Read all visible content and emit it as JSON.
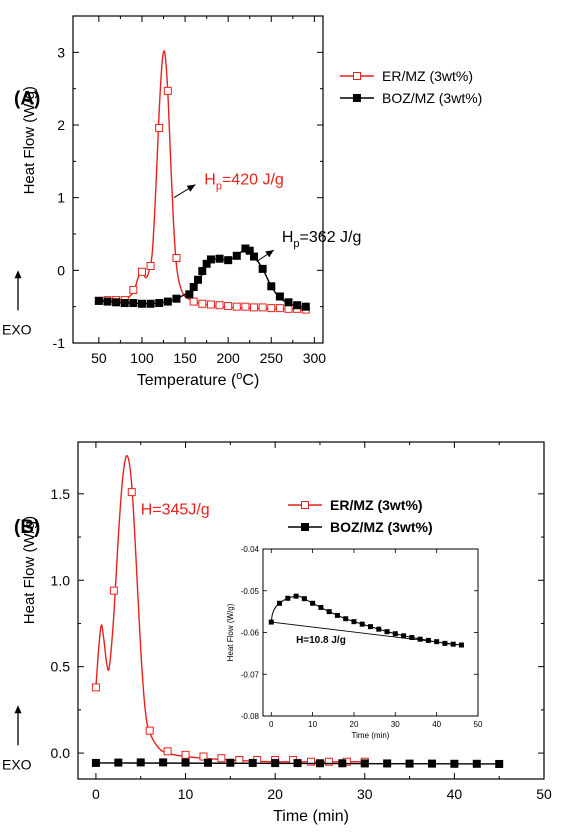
{
  "chart_data": [
    {
      "type": "line",
      "panel_label": "(A)",
      "xlabel": "Temperature (°C)",
      "xlabel_pre": "Temperature (",
      "xlabel_sup": "o",
      "xlabel_post": "C)",
      "ylabel": "Heat Flow (W/g)",
      "exo_label": "EXO",
      "xlim": [
        20,
        310
      ],
      "ylim": [
        -1,
        3.5
      ],
      "xticks": [
        50,
        100,
        150,
        200,
        250,
        300
      ],
      "yticks": [
        -1,
        0,
        1,
        2,
        3
      ],
      "legend_position": "top-right",
      "series": [
        {
          "name": "ER/MZ (3wt%)",
          "color": "#e8211d",
          "marker": "open-square",
          "curve": [
            [
              50,
              -0.42
            ],
            [
              60,
              -0.41
            ],
            [
              70,
              -0.41
            ],
            [
              80,
              -0.4
            ],
            [
              90,
              -0.3
            ],
            [
              95,
              -0.12
            ],
            [
              100,
              0.02
            ],
            [
              104,
              -0.1
            ],
            [
              108,
              -0.02
            ],
            [
              112,
              0.25
            ],
            [
              116,
              1.1
            ],
            [
              120,
              2.2
            ],
            [
              123,
              2.8
            ],
            [
              125,
              3.0
            ],
            [
              127,
              2.95
            ],
            [
              130,
              2.45
            ],
            [
              133,
              1.6
            ],
            [
              136,
              0.8
            ],
            [
              139,
              0.2
            ],
            [
              142,
              -0.1
            ],
            [
              146,
              -0.28
            ],
            [
              150,
              -0.36
            ],
            [
              155,
              -0.4
            ],
            [
              160,
              -0.43
            ],
            [
              170,
              -0.46
            ],
            [
              180,
              -0.48
            ],
            [
              190,
              -0.5
            ],
            [
              200,
              -0.51
            ],
            [
              220,
              -0.52
            ],
            [
              250,
              -0.53
            ],
            [
              290,
              -0.54
            ]
          ],
          "markers": [
            [
              50,
              -0.42
            ],
            [
              60,
              -0.41
            ],
            [
              70,
              -0.41
            ],
            [
              80,
              -0.41
            ],
            [
              90,
              -0.27
            ],
            [
              100,
              -0.02
            ],
            [
              110,
              0.06
            ],
            [
              120,
              1.96
            ],
            [
              130,
              2.47
            ],
            [
              140,
              0.17
            ],
            [
              160,
              -0.43
            ],
            [
              170,
              -0.46
            ],
            [
              180,
              -0.47
            ],
            [
              190,
              -0.48
            ],
            [
              200,
              -0.49
            ],
            [
              210,
              -0.5
            ],
            [
              220,
              -0.5
            ],
            [
              230,
              -0.51
            ],
            [
              240,
              -0.51
            ],
            [
              250,
              -0.52
            ],
            [
              260,
              -0.52
            ],
            [
              270,
              -0.53
            ],
            [
              280,
              -0.53
            ],
            [
              290,
              -0.54
            ]
          ]
        },
        {
          "name": "BOZ/MZ (3wt%)",
          "color": "#000000",
          "marker": "filled-square",
          "curve": [
            [
              50,
              -0.42
            ],
            [
              70,
              -0.44
            ],
            [
              90,
              -0.45
            ],
            [
              110,
              -0.46
            ],
            [
              130,
              -0.43
            ],
            [
              140,
              -0.39
            ],
            [
              150,
              -0.33
            ],
            [
              160,
              -0.25
            ],
            [
              165,
              -0.16
            ],
            [
              170,
              -0.05
            ],
            [
              175,
              0.08
            ],
            [
              180,
              0.15
            ],
            [
              190,
              0.16
            ],
            [
              200,
              0.14
            ],
            [
              210,
              0.2
            ],
            [
              220,
              0.3
            ],
            [
              225,
              0.28
            ],
            [
              230,
              0.2
            ],
            [
              240,
              0.02
            ],
            [
              250,
              -0.22
            ],
            [
              260,
              -0.38
            ],
            [
              270,
              -0.45
            ],
            [
              280,
              -0.49
            ],
            [
              290,
              -0.51
            ]
          ],
          "markers": [
            [
              50,
              -0.42
            ],
            [
              60,
              -0.43
            ],
            [
              70,
              -0.44
            ],
            [
              80,
              -0.45
            ],
            [
              90,
              -0.45
            ],
            [
              100,
              -0.46
            ],
            [
              110,
              -0.46
            ],
            [
              120,
              -0.45
            ],
            [
              130,
              -0.43
            ],
            [
              140,
              -0.39
            ],
            [
              155,
              -0.33
            ],
            [
              160,
              -0.23
            ],
            [
              165,
              -0.13
            ],
            [
              170,
              -0.01
            ],
            [
              175,
              0.09
            ],
            [
              180,
              0.15
            ],
            [
              190,
              0.16
            ],
            [
              200,
              0.14
            ],
            [
              210,
              0.2
            ],
            [
              220,
              0.3
            ],
            [
              225,
              0.27
            ],
            [
              230,
              0.19
            ],
            [
              240,
              0.02
            ],
            [
              250,
              -0.22
            ],
            [
              260,
              -0.36
            ],
            [
              270,
              -0.44
            ],
            [
              280,
              -0.48
            ],
            [
              290,
              -0.5
            ]
          ]
        }
      ],
      "annotations": [
        {
          "pre": "H",
          "sub": "p",
          "post": "=420 J/g",
          "color": "#e8211d",
          "x": 163,
          "y": 1.18,
          "arrow_from": [
            137,
            1.0
          ],
          "arrow_to": [
            162,
            1.18
          ]
        },
        {
          "pre": "H",
          "sub": "p",
          "post": "=362 J/g",
          "color": "#000000",
          "x": 253,
          "y": 0.39,
          "arrow_from": [
            233,
            0.12
          ],
          "arrow_to": [
            253,
            0.28
          ]
        }
      ]
    },
    {
      "type": "line",
      "panel_label": "(B)",
      "xlabel": "Time (min)",
      "ylabel": "Heat Flow (W/g)",
      "exo_label": "EXO",
      "xlim": [
        -2,
        50
      ],
      "ylim": [
        -0.15,
        1.8
      ],
      "xticks": [
        0,
        10,
        20,
        30,
        40,
        50
      ],
      "yticks": [
        0.0,
        0.5,
        1.0,
        1.5
      ],
      "legend_position": "top-right",
      "series": [
        {
          "name": "ER/MZ (3wt%)",
          "color": "#e8211d",
          "marker": "open-square",
          "curve": [
            [
              0,
              0.38
            ],
            [
              0.3,
              0.6
            ],
            [
              0.6,
              0.74
            ],
            [
              0.9,
              0.65
            ],
            [
              1.2,
              0.52
            ],
            [
              1.5,
              0.5
            ],
            [
              2,
              0.8
            ],
            [
              2.5,
              1.25
            ],
            [
              3,
              1.6
            ],
            [
              3.5,
              1.72
            ],
            [
              4,
              1.55
            ],
            [
              4.5,
              1.1
            ],
            [
              5,
              0.6
            ],
            [
              5.5,
              0.25
            ],
            [
              6,
              0.12
            ],
            [
              7,
              0.03
            ],
            [
              8,
              0.0
            ],
            [
              10,
              -0.02
            ],
            [
              15,
              -0.04
            ],
            [
              20,
              -0.05
            ],
            [
              30,
              -0.05
            ]
          ],
          "markers": [
            [
              0,
              0.38
            ],
            [
              2,
              0.94
            ],
            [
              4,
              1.51
            ],
            [
              6,
              0.13
            ],
            [
              8,
              0.01
            ],
            [
              10,
              -0.01
            ],
            [
              12,
              -0.02
            ],
            [
              14,
              -0.03
            ],
            [
              16,
              -0.04
            ],
            [
              18,
              -0.04
            ],
            [
              20,
              -0.04
            ],
            [
              22,
              -0.04
            ],
            [
              24,
              -0.05
            ],
            [
              26,
              -0.05
            ],
            [
              28,
              -0.05
            ],
            [
              30,
              -0.05
            ]
          ]
        },
        {
          "name": "BOZ/MZ (3wt%)",
          "color": "#000000",
          "marker": "filled-square",
          "curve": [
            [
              0,
              -0.057
            ],
            [
              45,
              -0.063
            ]
          ],
          "markers": [
            [
              0,
              -0.057
            ],
            [
              2.5,
              -0.055
            ],
            [
              5,
              -0.054
            ],
            [
              7.5,
              -0.054
            ],
            [
              10,
              -0.055
            ],
            [
              12.5,
              -0.056
            ],
            [
              15,
              -0.056
            ],
            [
              17.5,
              -0.057
            ],
            [
              20,
              -0.058
            ],
            [
              22.5,
              -0.058
            ],
            [
              25,
              -0.059
            ],
            [
              27.5,
              -0.059
            ],
            [
              30,
              -0.06
            ],
            [
              32.5,
              -0.06
            ],
            [
              35,
              -0.061
            ],
            [
              37.5,
              -0.061
            ],
            [
              40,
              -0.062
            ],
            [
              42.5,
              -0.062
            ],
            [
              45,
              -0.063
            ]
          ]
        }
      ],
      "annotations": [
        {
          "text": "H=345J/g",
          "color": "#e8211d",
          "x": 5,
          "y": 1.38
        }
      ],
      "inset": {
        "type": "line",
        "xlabel": "Time (min)",
        "ylabel": "Heat Flow (W/g)",
        "xlim": [
          -2,
          50
        ],
        "ylim": [
          -0.08,
          -0.04
        ],
        "xticks": [
          0,
          10,
          20,
          30,
          40,
          50
        ],
        "yticks": [
          -0.08,
          -0.07,
          -0.06,
          -0.05,
          -0.04
        ],
        "annotation": {
          "text": "H=10.8 J/g",
          "x": 6,
          "y": -0.0625
        },
        "curve": [
          [
            0,
            -0.0575
          ],
          [
            0.3,
            -0.0555
          ],
          [
            1,
            -0.054
          ],
          [
            2,
            -0.053
          ],
          [
            3,
            -0.0523
          ],
          [
            4,
            -0.0518
          ],
          [
            5,
            -0.0515
          ],
          [
            6,
            -0.0513
          ],
          [
            7,
            -0.0514
          ],
          [
            8,
            -0.0519
          ],
          [
            10,
            -0.053
          ],
          [
            14,
            -0.055
          ],
          [
            18,
            -0.0567
          ],
          [
            22,
            -0.058
          ],
          [
            26,
            -0.0592
          ],
          [
            30,
            -0.0603
          ],
          [
            34,
            -0.0612
          ],
          [
            38,
            -0.0619
          ],
          [
            42,
            -0.0626
          ],
          [
            46,
            -0.063
          ]
        ],
        "markers": [
          [
            0,
            -0.0575
          ],
          [
            2,
            -0.053
          ],
          [
            4,
            -0.0518
          ],
          [
            6,
            -0.0513
          ],
          [
            8,
            -0.0519
          ],
          [
            10,
            -0.053
          ],
          [
            12,
            -0.054
          ],
          [
            14,
            -0.055
          ],
          [
            16,
            -0.0559
          ],
          [
            18,
            -0.0567
          ],
          [
            20,
            -0.0574
          ],
          [
            22,
            -0.058
          ],
          [
            24,
            -0.0586
          ],
          [
            26,
            -0.0592
          ],
          [
            28,
            -0.0598
          ],
          [
            30,
            -0.0603
          ],
          [
            32,
            -0.0608
          ],
          [
            34,
            -0.0612
          ],
          [
            36,
            -0.0616
          ],
          [
            38,
            -0.0619
          ],
          [
            40,
            -0.0622
          ],
          [
            42,
            -0.0626
          ],
          [
            44,
            -0.0628
          ],
          [
            46,
            -0.063
          ]
        ],
        "baseline": [
          [
            0,
            -0.0575
          ],
          [
            46,
            -0.063
          ]
        ]
      }
    }
  ]
}
